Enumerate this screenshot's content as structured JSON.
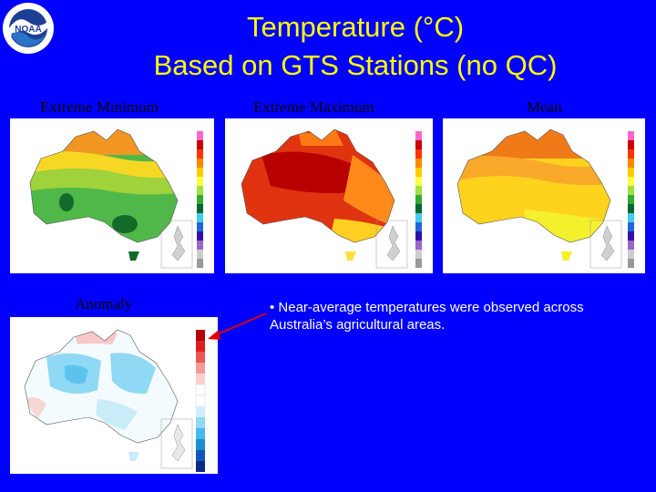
{
  "slide": {
    "title_line1": "Temperature (°C)",
    "title_line2": "Based on GTS Stations (no QC)",
    "logo_icon": "noaa-logo-icon",
    "colors": {
      "background": "#0000ff",
      "title": "#ffff00",
      "label": "#000000",
      "bullet": "#ffffff",
      "arrow": "#dd0000"
    }
  },
  "panels": {
    "extreme_minimum": {
      "label": "Extreme Minimum"
    },
    "extreme_maximum": {
      "label": "Extreme Maximum"
    },
    "mean": {
      "label": "Mean"
    },
    "anomaly": {
      "label": "Anomaly"
    }
  },
  "note": {
    "bullet": "• Near-average temperatures were observed across Australia’s agricultural areas."
  }
}
